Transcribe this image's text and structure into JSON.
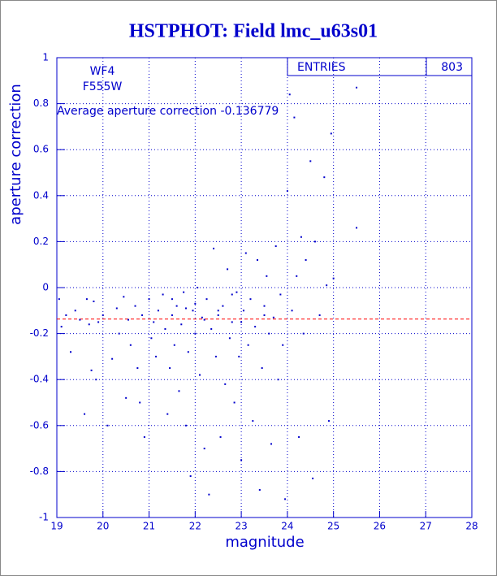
{
  "chart_data": {
    "type": "scatter",
    "title": "HSTPHOT: Field lmc_u63s01",
    "x_label": "magnitude",
    "y_label": "aperture correction",
    "annotations": [
      "WF4",
      "F555W",
      "Average aperture correction -0.136779"
    ],
    "stats_label": "ENTRIES",
    "stats_value": 803,
    "reference_line": -0.136779,
    "reference_color": "#ff0000",
    "color": "#0000cc",
    "grid": true,
    "xlim": [
      19,
      28
    ],
    "xticks": [
      19,
      20,
      21,
      22,
      23,
      24,
      25,
      26,
      27,
      28
    ],
    "ylim": [
      -1,
      1
    ],
    "yticks": [
      -1,
      -0.8,
      -0.6,
      -0.4,
      -0.2,
      0,
      0.2,
      0.4,
      0.6,
      0.8,
      1
    ],
    "x": [
      19.05,
      19.1,
      19.2,
      19.3,
      19.4,
      19.5,
      19.6,
      19.65,
      19.7,
      19.75,
      19.8,
      19.85,
      19.9,
      20.0,
      20.1,
      20.2,
      20.3,
      20.35,
      20.45,
      20.5,
      20.55,
      20.6,
      20.7,
      20.75,
      20.8,
      20.85,
      20.9,
      21.0,
      21.05,
      21.1,
      21.15,
      21.2,
      21.3,
      21.35,
      21.4,
      21.45,
      21.5,
      21.55,
      21.6,
      21.65,
      21.7,
      21.75,
      21.8,
      21.85,
      21.9,
      21.95,
      22.0,
      22.05,
      22.1,
      22.15,
      22.2,
      22.25,
      22.3,
      22.35,
      22.4,
      22.45,
      22.5,
      22.55,
      22.6,
      22.65,
      22.7,
      22.75,
      22.8,
      22.85,
      22.9,
      22.95,
      23.0,
      23.05,
      23.1,
      23.15,
      23.2,
      23.25,
      23.3,
      23.35,
      23.4,
      23.45,
      23.5,
      23.55,
      23.6,
      23.65,
      23.7,
      23.75,
      23.8,
      23.85,
      23.9,
      23.95,
      24.0,
      24.05,
      24.1,
      24.15,
      24.2,
      24.25,
      24.3,
      24.35,
      24.4,
      24.5,
      24.55,
      24.6,
      24.7,
      24.8,
      24.85,
      24.9,
      24.95,
      25.0,
      25.5,
      25.5,
      23.0,
      22.5,
      22.0,
      21.5,
      23.5,
      22.8,
      22.2,
      21.8
    ],
    "values": [
      -0.05,
      -0.17,
      -0.12,
      -0.28,
      -0.1,
      -0.14,
      -0.55,
      -0.05,
      -0.16,
      -0.36,
      -0.06,
      -0.4,
      -0.15,
      -0.12,
      -0.6,
      -0.31,
      -0.09,
      -0.2,
      -0.04,
      -0.48,
      -0.14,
      -0.25,
      -0.08,
      -0.35,
      -0.5,
      -0.12,
      -0.65,
      -0.05,
      -0.22,
      -0.15,
      -0.3,
      -0.1,
      -0.03,
      -0.18,
      -0.55,
      -0.35,
      -0.12,
      -0.25,
      -0.08,
      -0.45,
      -0.16,
      -0.02,
      -0.6,
      -0.28,
      -0.82,
      -0.1,
      -0.2,
      0.0,
      -0.38,
      -0.13,
      -0.7,
      -0.05,
      -0.9,
      -0.18,
      0.17,
      -0.3,
      -0.12,
      -0.65,
      -0.08,
      -0.42,
      0.08,
      -0.22,
      -0.15,
      -0.5,
      -0.02,
      -0.3,
      -0.75,
      -0.1,
      0.15,
      -0.25,
      -0.05,
      -0.58,
      -0.17,
      0.12,
      -0.88,
      -0.35,
      -0.08,
      0.05,
      -0.2,
      -0.68,
      -0.13,
      0.18,
      -0.4,
      -0.03,
      -0.25,
      -0.92,
      0.42,
      0.84,
      -0.1,
      0.74,
      0.05,
      -0.65,
      0.22,
      -0.2,
      0.12,
      0.55,
      -0.83,
      0.2,
      -0.12,
      0.48,
      0.01,
      -0.58,
      0.67,
      0.04,
      0.87,
      0.26,
      -0.15,
      -0.1,
      -0.07,
      -0.05,
      -0.12,
      -0.03,
      -0.14,
      -0.09
    ]
  }
}
